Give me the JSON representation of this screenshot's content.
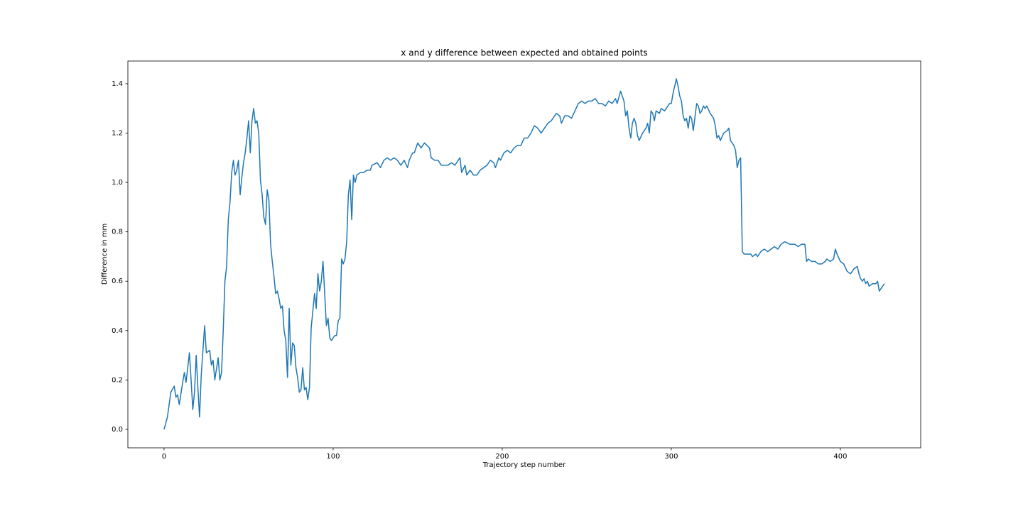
{
  "chart_data": {
    "type": "line",
    "title": "x and y difference between expected and obtained points",
    "xlabel": "Trajectory step number",
    "ylabel": "Difference in mm",
    "xlim": [
      -21.4,
      447.5
    ],
    "ylim": [
      -0.075,
      1.492
    ],
    "xticks": [
      0,
      100,
      200,
      300,
      400
    ],
    "yticks": [
      {
        "value": 0,
        "label": "0.0"
      },
      0.2,
      0.4,
      0.6,
      0.8,
      {
        "value": 1,
        "label": "1.0"
      },
      1.2,
      1.4
    ],
    "grid": false,
    "series": [
      {
        "name": "difference",
        "color": "#1f77b4",
        "x": [
          0,
          2,
          4,
          6,
          7,
          8,
          9,
          11,
          12,
          13,
          15,
          16,
          17,
          18,
          19,
          20,
          21,
          22,
          24,
          25,
          27,
          28,
          29,
          30,
          32,
          33,
          34,
          35,
          36,
          37,
          38,
          39,
          40,
          41,
          42,
          43,
          44,
          45,
          46,
          47,
          48,
          49,
          50,
          51,
          52,
          53,
          54,
          55,
          56,
          57,
          58,
          59,
          60,
          61,
          62,
          63,
          64,
          65,
          66,
          67,
          68,
          69,
          70,
          71,
          72,
          73,
          74,
          75,
          76,
          77,
          78,
          79,
          80,
          81,
          82,
          83,
          84,
          85,
          86,
          87,
          88,
          89,
          90,
          91,
          92,
          93,
          94,
          95,
          96,
          97,
          98,
          99,
          100,
          101,
          102,
          103,
          104,
          105,
          106,
          107,
          108,
          109,
          110,
          111,
          112,
          113,
          114,
          116,
          118,
          120,
          122,
          123,
          126,
          128,
          130,
          132,
          134,
          136,
          138,
          140,
          142,
          144,
          145,
          147,
          148,
          150,
          152,
          154,
          157,
          158,
          160,
          162,
          164,
          166,
          168,
          170,
          172,
          174,
          175,
          176,
          178,
          179,
          181,
          183,
          185,
          187,
          189,
          191,
          193,
          195,
          196,
          198,
          199,
          201,
          203,
          205,
          207,
          209,
          211,
          213,
          215,
          217,
          219,
          221,
          223,
          225,
          227,
          229,
          231,
          232,
          234,
          235,
          237,
          239,
          241,
          243,
          245,
          247,
          249,
          251,
          253,
          255,
          257,
          259,
          261,
          263,
          265,
          267,
          268,
          270,
          272,
          273,
          274,
          275,
          276,
          277,
          278,
          279,
          280,
          281,
          283,
          285,
          286,
          287,
          288,
          289,
          290,
          291,
          293,
          294,
          296,
          297,
          298,
          299,
          300,
          301,
          303,
          304,
          305,
          306,
          307,
          308,
          309,
          310,
          311,
          312,
          313,
          315,
          316,
          317,
          318,
          319,
          320,
          321,
          323,
          325,
          326,
          327,
          328,
          329,
          331,
          333,
          334,
          335,
          337,
          338,
          339,
          340,
          341,
          342,
          343,
          345,
          347,
          348,
          350,
          351,
          353,
          355,
          357,
          359,
          361,
          363,
          365,
          367,
          370,
          373,
          375,
          377,
          379,
          380,
          381,
          383,
          385,
          387,
          389,
          391,
          392,
          394,
          396,
          397,
          398,
          400,
          402,
          404,
          406,
          408,
          410,
          411,
          412,
          413,
          414,
          415,
          416,
          417,
          419,
          421,
          422,
          423,
          425,
          426
        ],
        "values": [
          0,
          0.05,
          0.15,
          0.175,
          0.13,
          0.14,
          0.1,
          0.19,
          0.23,
          0.19,
          0.31,
          0.2,
          0.08,
          0.15,
          0.3,
          0.17,
          0.05,
          0.22,
          0.42,
          0.31,
          0.32,
          0.26,
          0.28,
          0.2,
          0.29,
          0.2,
          0.23,
          0.4,
          0.6,
          0.66,
          0.85,
          0.92,
          1.04,
          1.09,
          1.03,
          1.05,
          1.09,
          0.95,
          1.02,
          1.08,
          1.12,
          1.18,
          1.25,
          1.12,
          1.25,
          1.3,
          1.24,
          1.25,
          1.2,
          1.01,
          0.95,
          0.86,
          0.83,
          0.97,
          0.93,
          0.75,
          0.68,
          0.62,
          0.55,
          0.56,
          0.53,
          0.49,
          0.5,
          0.4,
          0.36,
          0.21,
          0.49,
          0.26,
          0.35,
          0.34,
          0.25,
          0.21,
          0.15,
          0.16,
          0.25,
          0.16,
          0.17,
          0.12,
          0.17,
          0.41,
          0.48,
          0.55,
          0.49,
          0.63,
          0.56,
          0.6,
          0.68,
          0.55,
          0.42,
          0.45,
          0.37,
          0.36,
          0.37,
          0.38,
          0.38,
          0.44,
          0.45,
          0.69,
          0.67,
          0.69,
          0.76,
          0.95,
          1.01,
          0.85,
          1.03,
          1.0,
          1.03,
          1.04,
          1.04,
          1.05,
          1.05,
          1.07,
          1.08,
          1.06,
          1.09,
          1.1,
          1.09,
          1.1,
          1.09,
          1.07,
          1.09,
          1.06,
          1.09,
          1.12,
          1.12,
          1.16,
          1.14,
          1.16,
          1.14,
          1.1,
          1.09,
          1.09,
          1.07,
          1.07,
          1.07,
          1.08,
          1.07,
          1.09,
          1.1,
          1.04,
          1.07,
          1.03,
          1.05,
          1.03,
          1.03,
          1.05,
          1.06,
          1.07,
          1.09,
          1.08,
          1.06,
          1.1,
          1.09,
          1.12,
          1.13,
          1.12,
          1.14,
          1.15,
          1.15,
          1.18,
          1.18,
          1.2,
          1.23,
          1.22,
          1.2,
          1.22,
          1.24,
          1.25,
          1.27,
          1.28,
          1.27,
          1.24,
          1.27,
          1.27,
          1.26,
          1.29,
          1.32,
          1.33,
          1.32,
          1.33,
          1.33,
          1.34,
          1.32,
          1.32,
          1.31,
          1.33,
          1.32,
          1.34,
          1.32,
          1.37,
          1.33,
          1.27,
          1.29,
          1.22,
          1.18,
          1.24,
          1.26,
          1.24,
          1.19,
          1.17,
          1.2,
          1.22,
          1.24,
          1.2,
          1.29,
          1.28,
          1.25,
          1.29,
          1.28,
          1.3,
          1.29,
          1.3,
          1.31,
          1.32,
          1.32,
          1.36,
          1.42,
          1.39,
          1.35,
          1.33,
          1.27,
          1.25,
          1.26,
          1.22,
          1.27,
          1.26,
          1.21,
          1.32,
          1.31,
          1.28,
          1.29,
          1.31,
          1.3,
          1.31,
          1.28,
          1.26,
          1.23,
          1.18,
          1.19,
          1.17,
          1.2,
          1.21,
          1.22,
          1.17,
          1.15,
          1.13,
          1.06,
          1.09,
          1.1,
          0.72,
          0.71,
          0.71,
          0.71,
          0.7,
          0.71,
          0.7,
          0.72,
          0.73,
          0.72,
          0.73,
          0.74,
          0.73,
          0.75,
          0.76,
          0.75,
          0.75,
          0.74,
          0.75,
          0.75,
          0.68,
          0.69,
          0.68,
          0.68,
          0.67,
          0.67,
          0.68,
          0.69,
          0.68,
          0.69,
          0.73,
          0.71,
          0.68,
          0.67,
          0.64,
          0.63,
          0.65,
          0.66,
          0.63,
          0.61,
          0.6,
          0.61,
          0.59,
          0.6,
          0.58,
          0.59,
          0.59,
          0.6,
          0.56,
          0.58,
          0.59
        ]
      }
    ]
  }
}
